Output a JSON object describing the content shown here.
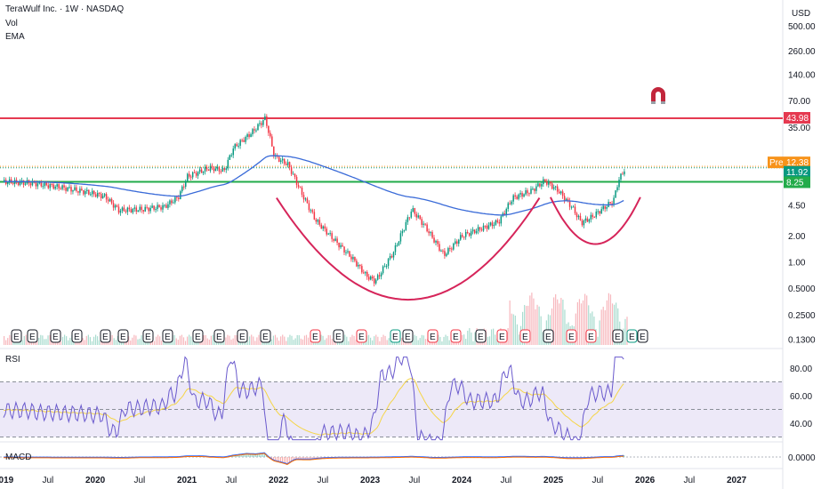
{
  "header": {
    "title": "TeraWulf Inc. · 1W · NASDAQ",
    "indicators": [
      "Vol",
      "EMA"
    ],
    "currency": "USD"
  },
  "price_axis": [
    "500.00",
    "260.00",
    "140.00",
    "70.00",
    "35.00",
    "4.50",
    "2.00",
    "1.00",
    "0.5000",
    "0.2500",
    "0.1300"
  ],
  "price_tags": [
    {
      "label": "",
      "value": "43.98",
      "color": "#e53950"
    },
    {
      "label": "Pre",
      "value": "12.38",
      "color": "#f7931a"
    },
    {
      "label": "",
      "value": "11.92",
      "color": "#089981"
    },
    {
      "label": "",
      "value": "8.25",
      "color": "#22ab4a"
    }
  ],
  "rsi": {
    "label": "RSI",
    "axis": [
      "80.00",
      "60.00",
      "40.00"
    ],
    "upper": 70,
    "mid": 50,
    "lower": 30
  },
  "macd": {
    "label": "MACD",
    "axis": [
      "0.0000"
    ]
  },
  "time_axis": [
    "2019",
    "Jul",
    "2020",
    "Jul",
    "2021",
    "Jul",
    "2022",
    "Jul",
    "2023",
    "Jul",
    "2024",
    "Jul",
    "2025",
    "Jul",
    "2026",
    "Jul",
    "2027"
  ],
  "events_earnings": [
    "E",
    "E",
    "E",
    "E",
    "E",
    "E",
    "E",
    "E",
    "E",
    "E",
    "E",
    "E",
    "E",
    "E",
    "E",
    "E",
    "E",
    "E",
    "E",
    "E",
    "E",
    "E",
    "E",
    "E",
    "E",
    "E",
    "E",
    "E"
  ],
  "colors": {
    "up": "#089981",
    "down": "#f23645",
    "ema": "#3a6bd8",
    "rsi": "#6a5acd",
    "rsi_ma": "#f5d547",
    "resistance": "#e53950",
    "support": "#22ab4a",
    "pattern": "#d6255a",
    "band": "#ede9f8"
  },
  "chart_data": {
    "type": "line",
    "title": "TeraWulf Inc. · 1W · NASDAQ",
    "log_scale": true,
    "x_range": [
      "2019",
      "2027"
    ],
    "ylim": [
      0.13,
      500
    ],
    "horizontal_levels": [
      43.98,
      8.25
    ],
    "series": [
      {
        "name": "",
        "values": [
          [
            2019.0,
            8.3
          ],
          [
            2019.3,
            8.0
          ],
          [
            2019.6,
            7.2
          ],
          [
            2019.9,
            6.3
          ],
          [
            2020.1,
            5.6
          ],
          [
            2020.25,
            3.9
          ],
          [
            2020.5,
            4.0
          ],
          [
            2020.75,
            4.3
          ],
          [
            2020.9,
            5.5
          ],
          [
            2021.0,
            9.5
          ],
          [
            2021.25,
            12.0
          ],
          [
            2021.4,
            11.0
          ],
          [
            2021.5,
            20.0
          ],
          [
            2021.7,
            30.0
          ],
          [
            2021.85,
            44.0
          ],
          [
            2021.95,
            16.0
          ],
          [
            2022.1,
            13.0
          ],
          [
            2022.25,
            6.0
          ],
          [
            2022.4,
            3.0
          ],
          [
            2022.6,
            1.8
          ],
          [
            2022.8,
            1.1
          ],
          [
            2022.95,
            0.7
          ],
          [
            2023.05,
            0.6
          ],
          [
            2023.25,
            1.3
          ],
          [
            2023.45,
            4.0
          ],
          [
            2023.6,
            2.5
          ],
          [
            2023.8,
            1.2
          ],
          [
            2024.0,
            2.0
          ],
          [
            2024.2,
            2.4
          ],
          [
            2024.4,
            2.9
          ],
          [
            2024.55,
            5.4
          ],
          [
            2024.75,
            6.5
          ],
          [
            2024.9,
            8.5
          ],
          [
            2025.05,
            6.5
          ],
          [
            2025.2,
            4.2
          ],
          [
            2025.3,
            2.8
          ],
          [
            2025.4,
            3.2
          ],
          [
            2025.55,
            4.2
          ],
          [
            2025.65,
            5.0
          ],
          [
            2025.7,
            8.3
          ],
          [
            2025.78,
            11.92
          ]
        ]
      }
    ]
  }
}
